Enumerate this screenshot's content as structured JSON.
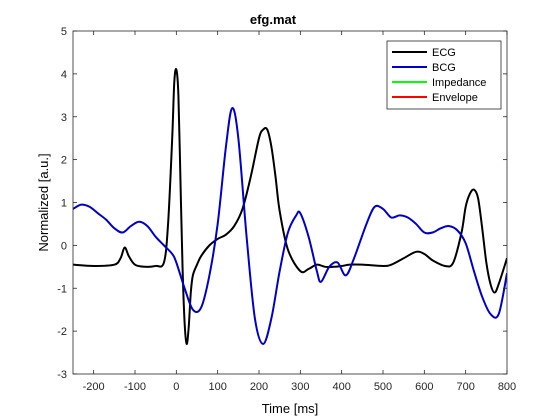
{
  "chart_data": {
    "type": "line",
    "title": "efg.mat",
    "xlabel": "Time [ms]",
    "ylabel": "Normalized [a.u.]",
    "xlim": [
      -250,
      800
    ],
    "ylim": [
      -3,
      5
    ],
    "xticks": [
      -200,
      -100,
      0,
      100,
      200,
      300,
      400,
      500,
      600,
      700,
      800
    ],
    "xtick_labels": [
      "-200",
      "-100",
      "0",
      "100",
      "200",
      "300",
      "400",
      "500",
      "600",
      "700",
      "800"
    ],
    "yticks": [
      -3,
      -2,
      -1,
      0,
      1,
      2,
      3,
      4,
      5
    ],
    "ytick_labels": [
      "-3",
      "-2",
      "-1",
      "0",
      "1",
      "2",
      "3",
      "4",
      "5"
    ],
    "grid": false,
    "legend_position": "top-right",
    "series": [
      {
        "name": "ECG",
        "color": "#000000",
        "x": [
          -250,
          -200,
          -150,
          -135,
          -125,
          -115,
          -100,
          -75,
          -50,
          -30,
          -20,
          -10,
          -5,
          0,
          5,
          10,
          15,
          20,
          25,
          30,
          35,
          40,
          50,
          60,
          80,
          100,
          120,
          140,
          160,
          180,
          200,
          210,
          220,
          230,
          240,
          250,
          270,
          300,
          320,
          340,
          360,
          380,
          400,
          420,
          450,
          500,
          520,
          550,
          580,
          600,
          620,
          650,
          670,
          690,
          700,
          710,
          720,
          730,
          740,
          750,
          760,
          770,
          780,
          800
        ],
        "values": [
          -0.45,
          -0.48,
          -0.45,
          -0.3,
          -0.05,
          -0.25,
          -0.45,
          -0.5,
          -0.48,
          -0.4,
          0.5,
          2.5,
          3.8,
          4.1,
          3.5,
          1.5,
          -0.5,
          -1.8,
          -2.3,
          -1.9,
          -1.1,
          -0.7,
          -0.45,
          -0.25,
          0.0,
          0.15,
          0.25,
          0.45,
          0.85,
          1.6,
          2.5,
          2.7,
          2.7,
          2.3,
          1.6,
          0.8,
          -0.1,
          -0.6,
          -0.55,
          -0.45,
          -0.5,
          -0.5,
          -0.48,
          -0.45,
          -0.45,
          -0.48,
          -0.45,
          -0.3,
          -0.15,
          -0.2,
          -0.35,
          -0.48,
          -0.4,
          0.3,
          0.9,
          1.2,
          1.3,
          1.1,
          0.4,
          -0.4,
          -0.9,
          -1.1,
          -0.9,
          -0.3
        ]
      },
      {
        "name": "BCG",
        "color": "#0000cc",
        "x": [
          -250,
          -230,
          -210,
          -190,
          -170,
          -150,
          -130,
          -110,
          -90,
          -70,
          -50,
          -30,
          -10,
          0,
          20,
          40,
          60,
          80,
          100,
          120,
          135,
          150,
          170,
          190,
          210,
          230,
          250,
          270,
          290,
          300,
          320,
          340,
          350,
          370,
          390,
          410,
          430,
          460,
          480,
          500,
          520,
          540,
          560,
          580,
          600,
          620,
          640,
          660,
          680,
          700,
          720,
          740,
          760,
          780,
          800
        ],
        "values": [
          0.85,
          0.95,
          0.9,
          0.75,
          0.6,
          0.4,
          0.3,
          0.45,
          0.55,
          0.45,
          0.2,
          0.0,
          -0.2,
          -0.4,
          -1.0,
          -1.5,
          -1.45,
          -0.7,
          0.5,
          2.3,
          3.2,
          2.5,
          0.2,
          -1.7,
          -2.3,
          -1.7,
          -0.6,
          0.3,
          0.7,
          0.75,
          0.2,
          -0.6,
          -0.85,
          -0.5,
          -0.4,
          -0.7,
          -0.3,
          0.5,
          0.9,
          0.85,
          0.65,
          0.7,
          0.65,
          0.5,
          0.3,
          0.3,
          0.4,
          0.45,
          0.35,
          0.05,
          -0.6,
          -1.2,
          -1.6,
          -1.6,
          -0.65
        ]
      },
      {
        "name": "Impedance",
        "color": "#00ff00",
        "x": [],
        "values": []
      },
      {
        "name": "Envelope",
        "color": "#ff0000",
        "x": [],
        "values": []
      }
    ]
  }
}
